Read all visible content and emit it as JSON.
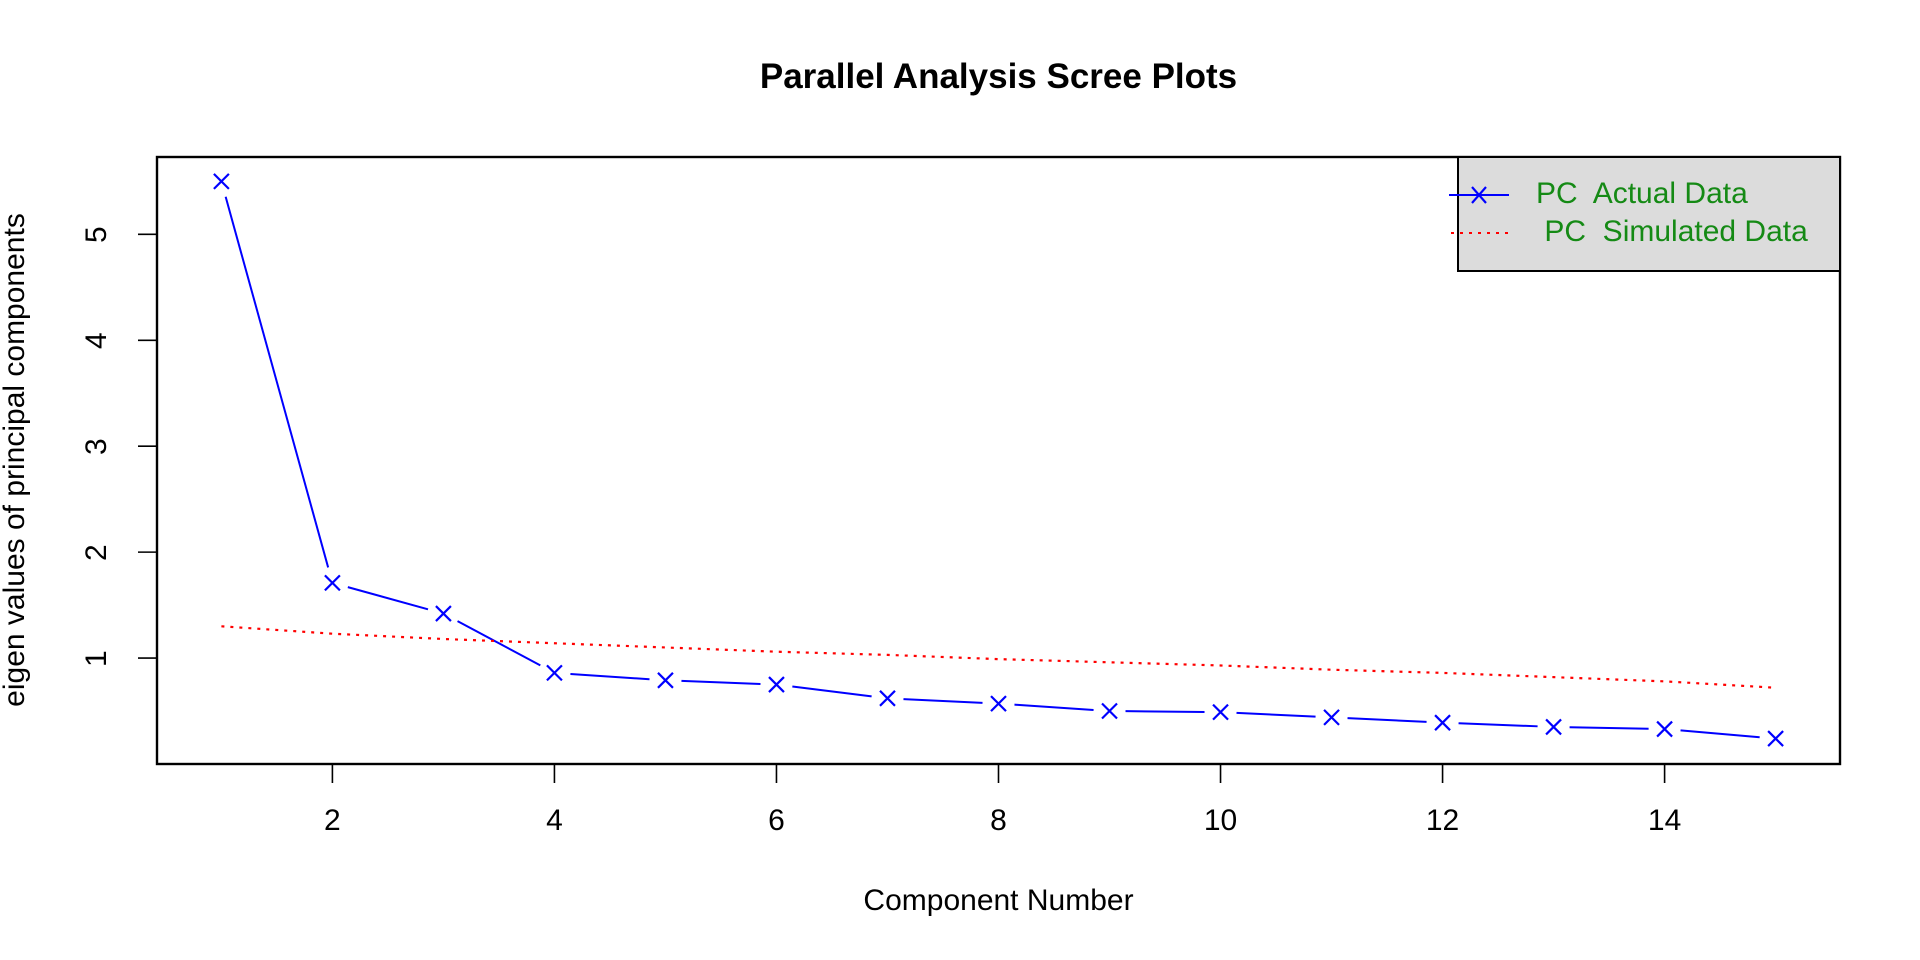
{
  "chart_data": {
    "type": "line",
    "title": "Parallel Analysis Scree Plots",
    "xlabel": "Component Number",
    "ylabel": "eigen values of principal components",
    "x": [
      1,
      2,
      3,
      4,
      5,
      6,
      7,
      8,
      9,
      10,
      11,
      12,
      13,
      14,
      15
    ],
    "series": [
      {
        "name": "PC  Actual Data",
        "legend_label": "PC  Actual Data",
        "color": "#0000ff",
        "line_style": "solid",
        "marker": "x",
        "values": [
          5.5,
          1.71,
          1.42,
          0.86,
          0.79,
          0.75,
          0.62,
          0.57,
          0.5,
          0.49,
          0.44,
          0.39,
          0.35,
          0.33,
          0.24
        ]
      },
      {
        "name": "PC  Simulated Data",
        "legend_label": " PC  Simulated Data",
        "color": "#ff0000",
        "line_style": "dotted",
        "marker": null,
        "values": [
          1.3,
          1.23,
          1.18,
          1.14,
          1.1,
          1.06,
          1.03,
          0.99,
          0.96,
          0.93,
          0.89,
          0.86,
          0.82,
          0.78,
          0.72
        ]
      }
    ],
    "xticks": [
      2,
      4,
      6,
      8,
      10,
      12,
      14
    ],
    "yticks": [
      1,
      2,
      3,
      4,
      5
    ],
    "xlim": [
      0.42,
      15.58
    ],
    "ylim": [
      0.0,
      5.73
    ],
    "grid": false,
    "legend_position": "topright",
    "legend_text_color": "#158a15",
    "legend_background": "#dcdcdc"
  }
}
